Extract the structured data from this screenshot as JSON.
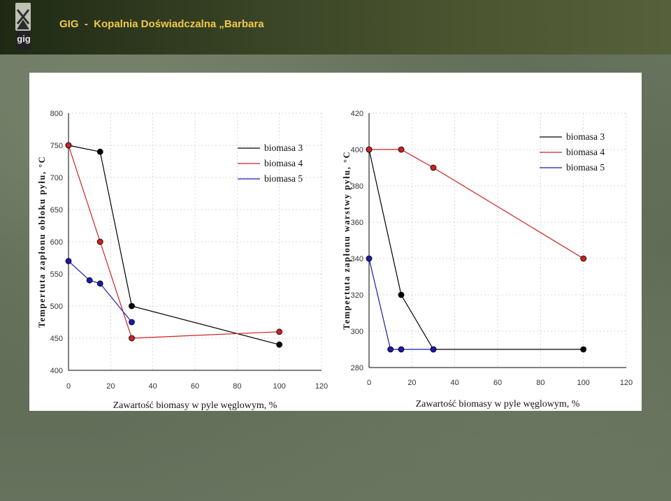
{
  "header": {
    "title": "GIG  -  Kopalnia Doświadczalna „Barbara",
    "logo_text": "gig",
    "title_color": "#f2c84a"
  },
  "colors": {
    "biomasa_3": "#000000",
    "biomasa_4": "#cc2222",
    "biomasa_5": "#1a1aaa"
  },
  "chart_data": [
    {
      "type": "line",
      "ylabel": "Tempertuta zapłonu obłoku pyłu, °C",
      "xlabel": "Zawartość biomasy w pyle węglowym, %",
      "xlim": [
        0,
        120
      ],
      "ylim": [
        400,
        800
      ],
      "xticks": [
        0,
        20,
        40,
        60,
        80,
        100,
        120
      ],
      "yticks": [
        400,
        450,
        500,
        550,
        600,
        650,
        700,
        750,
        800
      ],
      "grid": true,
      "legend_position": "top-right",
      "series": [
        {
          "name": "biomasa 3",
          "color": "#000000",
          "points": [
            [
              0,
              750
            ],
            [
              15,
              740
            ],
            [
              30,
              500
            ],
            [
              100,
              440
            ]
          ]
        },
        {
          "name": "biomasa 4",
          "color": "#cc2222",
          "points": [
            [
              0,
              750
            ],
            [
              15,
              600
            ],
            [
              30,
              450
            ],
            [
              100,
              460
            ]
          ]
        },
        {
          "name": "biomasa 5",
          "color": "#1a1aaa",
          "points": [
            [
              0,
              570
            ],
            [
              10,
              540
            ],
            [
              15,
              535
            ],
            [
              30,
              475
            ]
          ]
        }
      ]
    },
    {
      "type": "line",
      "ylabel": "Tempertuta zapłonu warstwy pyłu, °C",
      "xlabel": "Zawartość biomasy w pyle węglowym, %",
      "xlim": [
        0,
        120
      ],
      "ylim": [
        280,
        420
      ],
      "xticks": [
        0,
        20,
        40,
        60,
        80,
        100,
        120
      ],
      "yticks": [
        280,
        300,
        320,
        340,
        360,
        380,
        400,
        420
      ],
      "grid": true,
      "legend_position": "top-right",
      "series": [
        {
          "name": "biomasa 3",
          "color": "#000000",
          "points": [
            [
              0,
              400
            ],
            [
              15,
              320
            ],
            [
              30,
              290
            ],
            [
              100,
              290
            ]
          ]
        },
        {
          "name": "biomasa 4",
          "color": "#cc2222",
          "points": [
            [
              0,
              400
            ],
            [
              15,
              400
            ],
            [
              30,
              390
            ],
            [
              100,
              340
            ]
          ]
        },
        {
          "name": "biomasa 5",
          "color": "#1a1aaa",
          "points": [
            [
              0,
              340
            ],
            [
              10,
              290
            ],
            [
              15,
              290
            ],
            [
              30,
              290
            ]
          ]
        }
      ]
    }
  ]
}
